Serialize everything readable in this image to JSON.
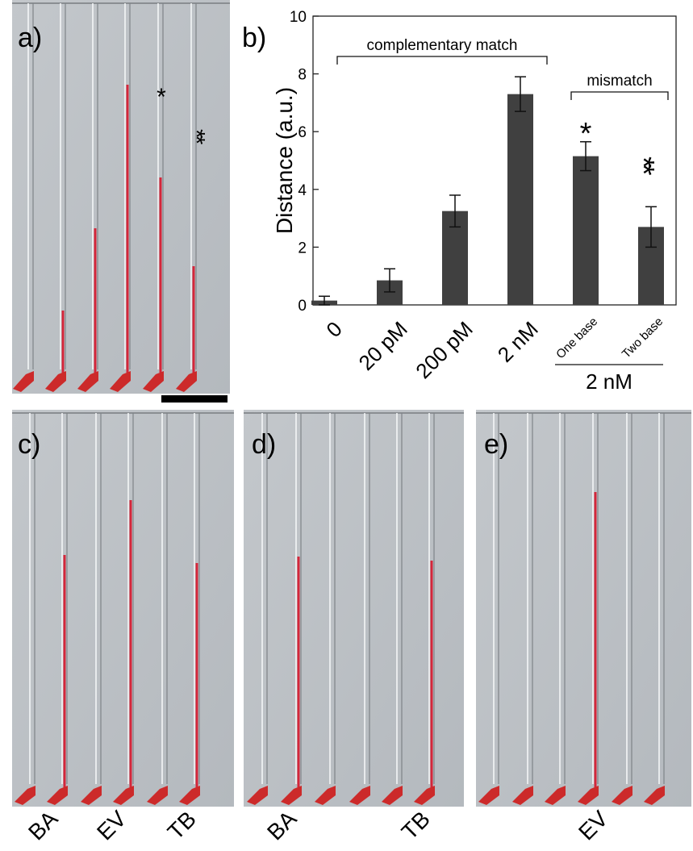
{
  "panels": {
    "a": {
      "label": "a)",
      "markers": [
        "*",
        "**"
      ]
    },
    "c": {
      "label": "c)",
      "samples": [
        "BA",
        "EV",
        "TB"
      ]
    },
    "d": {
      "label": "d)",
      "samples": [
        "BA",
        "TB"
      ]
    },
    "e": {
      "label": "e)",
      "samples": [
        "EV"
      ]
    }
  },
  "chart_data": {
    "type": "bar",
    "panel_label": "b)",
    "ylabel": "Distance (a.u.)",
    "categories": [
      "0",
      "20 pM",
      "200 pM",
      "2 nM",
      "One base",
      "Two base"
    ],
    "group_label": "2 nM",
    "values": [
      0.15,
      0.85,
      3.25,
      7.3,
      5.15,
      2.7
    ],
    "errors": [
      0.15,
      0.4,
      0.55,
      0.6,
      0.5,
      0.7
    ],
    "color": "#404040",
    "brackets": [
      "complementary match",
      "mismatch"
    ],
    "significance": [
      "*",
      "**"
    ],
    "ylim": [
      0,
      10
    ],
    "yticks": [
      0,
      2,
      4,
      6,
      8,
      10
    ]
  }
}
